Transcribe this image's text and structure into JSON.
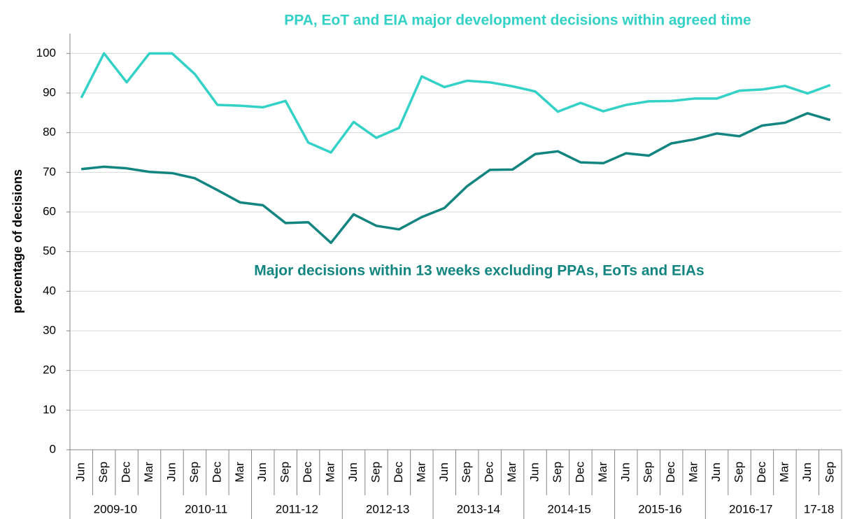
{
  "chart_data": {
    "type": "line",
    "y_label": "percentage of decisions",
    "categories": [
      "Jun",
      "Sep",
      "Dec",
      "Mar",
      "Jun",
      "Sep",
      "Dec",
      "Mar",
      "Jun",
      "Sep",
      "Dec",
      "Mar",
      "Jun",
      "Sep",
      "Dec",
      "Mar",
      "Jun",
      "Sep",
      "Dec",
      "Mar",
      "Jun",
      "Sep",
      "Dec",
      "Mar",
      "Jun",
      "Sep",
      "Dec",
      "Mar",
      "Jun",
      "Sep",
      "Dec",
      "Mar",
      "Jun",
      "Sep"
    ],
    "groups": [
      "2009-10",
      "2010-11",
      "2011-12",
      "2012-13",
      "2013-14",
      "2014-15",
      "2015-16",
      "2016-17",
      "17-18"
    ],
    "series": [
      {
        "name": "PPA, EoT and EIA major development decisions within agreed time",
        "color": "#33d1c6",
        "values": [
          88.8,
          100,
          92.7,
          100,
          100,
          94.8,
          87,
          86.8,
          86.4,
          88,
          77.5,
          75,
          82.7,
          78.7,
          81.2,
          94.2,
          91.5,
          93.1,
          92.7,
          91.7,
          90.4,
          85.3,
          87.5,
          85.4,
          87,
          87.9,
          88,
          88.6,
          88.6,
          90.6,
          90.9,
          91.8,
          89.9,
          92
        ]
      },
      {
        "name": "Major decisions within 13 weeks excluding PPAs, EoTs and EIAs",
        "color": "#138580",
        "values": [
          70.8,
          71.4,
          71,
          70.1,
          69.8,
          68.5,
          65.5,
          62.4,
          61.7,
          57.2,
          57.4,
          52.2,
          59.4,
          56.5,
          55.6,
          58.7,
          61,
          66.5,
          70.6,
          70.7,
          74.6,
          75.3,
          72.5,
          72.3,
          74.8,
          74.2,
          77.3,
          78.3,
          79.8,
          79.1,
          81.8,
          82.5,
          84.9,
          83.2
        ]
      }
    ],
    "ylim": [
      0,
      105
    ],
    "yticks": [
      0,
      10,
      20,
      30,
      40,
      50,
      60,
      70,
      80,
      90,
      100
    ],
    "grid": true
  }
}
